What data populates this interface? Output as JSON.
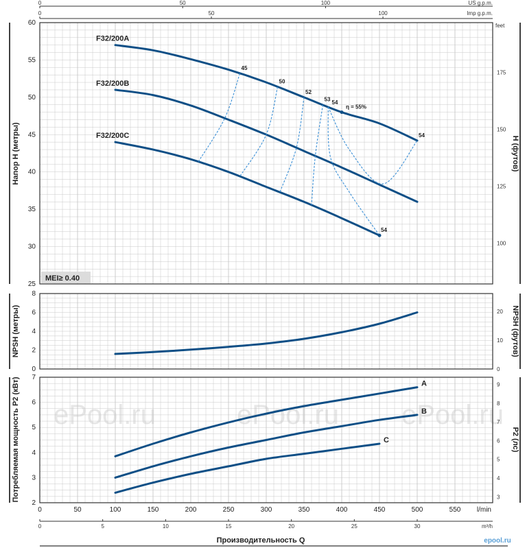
{
  "chart_data": [
    {
      "type": "line",
      "ylabel": "Напор H (метры)",
      "ylabel_right": "H (футов)",
      "ylim": [
        25,
        60
      ],
      "y_ticks": [
        25,
        30,
        35,
        40,
        45,
        50,
        55,
        60
      ],
      "y_right_unit": "feet",
      "y_right_ticks": [
        100,
        125,
        150,
        175
      ],
      "series": [
        {
          "name": "F32/200A",
          "x": [
            100,
            150,
            200,
            250,
            300,
            350,
            400,
            450,
            500
          ],
          "values": [
            57.0,
            56.3,
            55.1,
            53.7,
            52.0,
            50.0,
            48.0,
            46.5,
            44.2
          ]
        },
        {
          "name": "F32/200B",
          "x": [
            100,
            150,
            200,
            250,
            300,
            350,
            400,
            450,
            500
          ],
          "values": [
            51.0,
            50.3,
            48.9,
            47.0,
            45.0,
            42.8,
            40.6,
            38.3,
            36.0
          ]
        },
        {
          "name": "F32/200C",
          "x": [
            100,
            150,
            200,
            250,
            300,
            350,
            400,
            450
          ],
          "values": [
            44.0,
            43.0,
            41.7,
            40.0,
            38.0,
            36.0,
            33.8,
            31.5
          ]
        }
      ],
      "efficiency_labels": [
        "45",
        "50",
        "52",
        "53",
        "54",
        "η = 55%",
        "54",
        "54"
      ],
      "annotation": "MEI≥ 0.40"
    },
    {
      "type": "line",
      "ylabel": "NPSH (метры)",
      "ylabel_right": "NPSH (футов)",
      "ylim": [
        0,
        8
      ],
      "y_ticks": [
        0,
        2,
        4,
        6,
        8
      ],
      "y_right_ticks": [
        0,
        10,
        20
      ],
      "series": [
        {
          "x": [
            100,
            150,
            200,
            250,
            300,
            350,
            400,
            450,
            500
          ],
          "values": [
            1.6,
            1.8,
            2.05,
            2.35,
            2.7,
            3.2,
            3.9,
            4.8,
            6.0
          ]
        }
      ]
    },
    {
      "type": "line",
      "ylabel": "Потребляемая мощность P2 (кВт)",
      "ylabel_right": "P2 (лс)",
      "ylim": [
        2,
        7
      ],
      "y_ticks": [
        2,
        3,
        4,
        5,
        6,
        7
      ],
      "y_right_ticks": [
        3,
        4,
        5,
        6,
        7,
        8,
        9
      ],
      "series": [
        {
          "name": "A",
          "x": [
            100,
            150,
            200,
            250,
            300,
            350,
            400,
            450,
            500
          ],
          "values": [
            3.85,
            4.35,
            4.8,
            5.2,
            5.55,
            5.85,
            6.1,
            6.35,
            6.6
          ]
        },
        {
          "name": "B",
          "x": [
            100,
            150,
            200,
            250,
            300,
            350,
            400,
            450,
            500
          ],
          "values": [
            3.0,
            3.45,
            3.85,
            4.2,
            4.5,
            4.8,
            5.05,
            5.3,
            5.5
          ]
        },
        {
          "name": "C",
          "x": [
            100,
            150,
            200,
            250,
            300,
            350,
            400,
            450
          ],
          "values": [
            2.4,
            2.8,
            3.15,
            3.45,
            3.75,
            3.95,
            4.15,
            4.35
          ]
        }
      ],
      "xlabel": "Производительность Q",
      "x_unit": "l/min",
      "xlim": [
        0,
        600
      ],
      "x_ticks": [
        0,
        50,
        100,
        150,
        200,
        250,
        300,
        350,
        400,
        450,
        500,
        550
      ],
      "x2_unit": "m³/h",
      "x2_ticks": [
        0,
        5,
        10,
        15,
        20,
        25,
        30
      ]
    }
  ],
  "top_axes": {
    "us_unit": "US g.p.m.",
    "us_ticks": [
      0,
      50,
      100
    ],
    "imp_unit": "Imp g.p.m.",
    "imp_ticks": [
      0,
      50,
      100
    ]
  },
  "watermark": "ePool.ru",
  "logo": "epool.ru",
  "colors": {
    "curve": "#0f4f86",
    "efficiency": "#3a8fd6",
    "grid": "#c8c8c8",
    "frame": "#333333"
  }
}
